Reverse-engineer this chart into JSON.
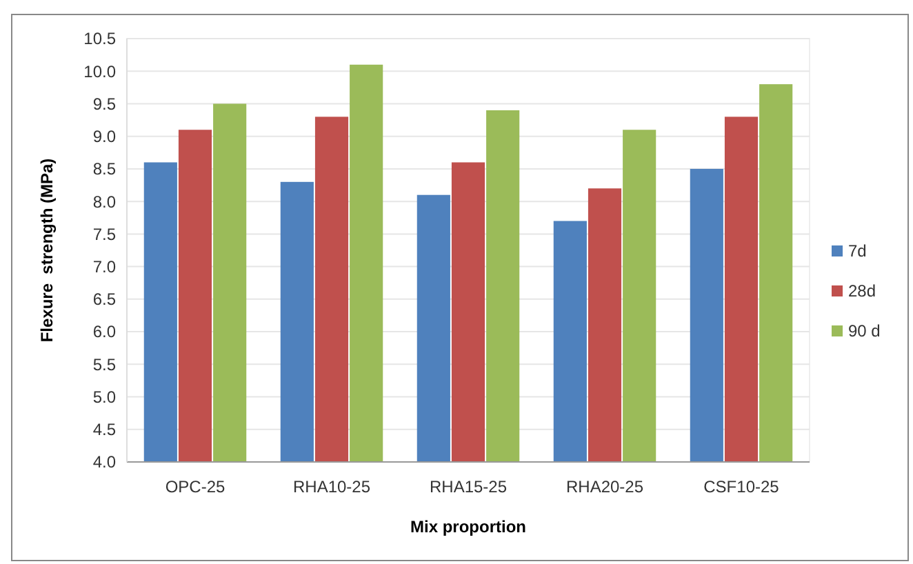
{
  "chart_data": {
    "type": "bar",
    "xlabel": "Mix proportion",
    "ylabel": "Flexure  strength (MPa)",
    "categories": [
      "OPC-25",
      "RHA10-25",
      "RHA15-25",
      "RHA20-25",
      "CSF10-25"
    ],
    "series": [
      {
        "name": "7d",
        "color": "#4f81bd",
        "values": [
          8.6,
          8.3,
          8.1,
          7.7,
          8.5
        ]
      },
      {
        "name": "28d",
        "color": "#c0504d",
        "values": [
          9.1,
          9.3,
          8.6,
          8.2,
          9.3
        ]
      },
      {
        "name": "90 d",
        "color": "#9bbb59",
        "values": [
          9.5,
          10.1,
          9.4,
          9.1,
          9.8
        ]
      }
    ],
    "ylim": [
      4.0,
      10.5
    ],
    "yticks": [
      {
        "value": 4,
        "label": "4.0"
      },
      {
        "value": 4.5,
        "label": "4.5"
      },
      {
        "value": 5,
        "label": "5.0"
      },
      {
        "value": 5.5,
        "label": "5.5"
      },
      {
        "value": 6,
        "label": "6.0"
      },
      {
        "value": 6.5,
        "label": "6.5"
      },
      {
        "value": 7,
        "label": "7.0"
      },
      {
        "value": 7.5,
        "label": "7.5"
      },
      {
        "value": 8,
        "label": "8.0"
      },
      {
        "value": 8.5,
        "label": "8.5"
      },
      {
        "value": 9,
        "label": "9.0"
      },
      {
        "value": 9.5,
        "label": "9.5"
      },
      {
        "value": 10,
        "label": "10.0"
      },
      {
        "value": 10.5,
        "label": "10.5"
      }
    ],
    "grid": "y",
    "legend": "right"
  }
}
